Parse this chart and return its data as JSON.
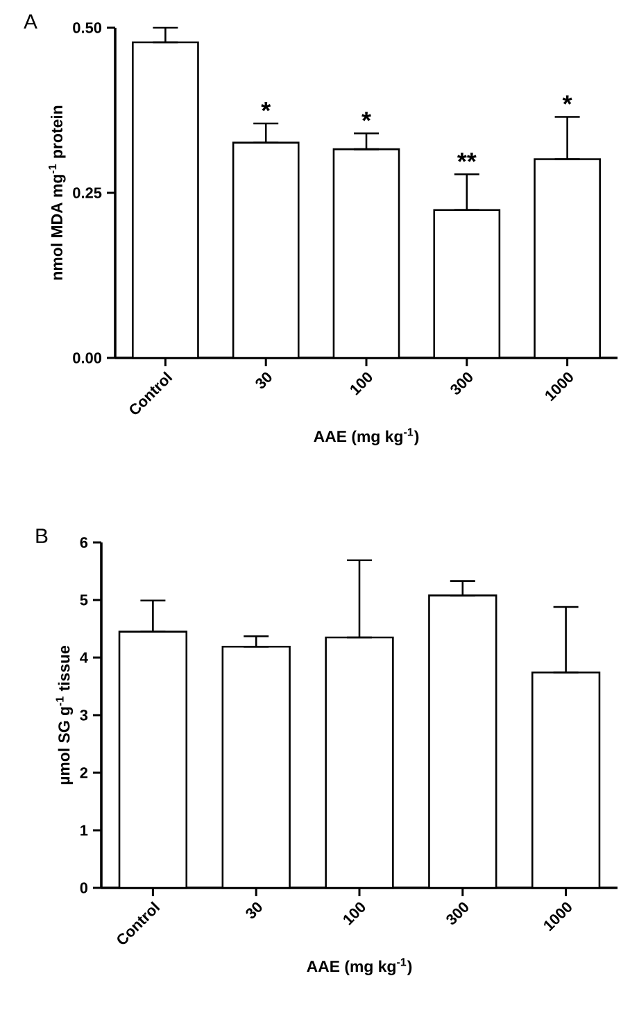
{
  "chart_data": [
    {
      "type": "bar",
      "title": "A",
      "xlabel": "AAE (mg kg$^{-1}$)",
      "ylabel": "nmol MDA  mg$^{-1}$ protein",
      "color": "#ffffff",
      "categories": [
        "Control",
        "30",
        "100",
        "300",
        "1000"
      ],
      "values": [
        0.478,
        0.326,
        0.316,
        0.224,
        0.301
      ],
      "errors": [
        [
          0.478,
          0.5
        ],
        [
          0.326,
          0.355
        ],
        [
          0.316,
          0.34
        ],
        [
          0.224,
          0.278
        ],
        [
          0.301,
          0.365
        ]
      ],
      "ylim": [
        0,
        0.5
      ],
      "yticks": [
        {
          "value": 0,
          "label": "0.00"
        },
        {
          "value": 0.25,
          "label": "0.25"
        },
        {
          "value": 0.5,
          "label": "0.50"
        }
      ],
      "annotations": [
        {
          "text": "*",
          "x": "30",
          "y": 0.355
        },
        {
          "text": "*",
          "x": "100",
          "y": 0.34
        },
        {
          "text": "**",
          "x": "300",
          "y": 0.278
        },
        {
          "text": "*",
          "x": "1000",
          "y": 0.365
        }
      ]
    },
    {
      "type": "bar",
      "title": "B",
      "xlabel": "AAE (mg kg$^{-1}$)",
      "ylabel": "µmol SG  g$^{-1}$ tissue",
      "color": "#ffffff",
      "categories": [
        "Control",
        "30",
        "100",
        "300",
        "1000"
      ],
      "values": [
        4.45,
        4.19,
        4.35,
        5.08,
        3.74
      ],
      "errors": [
        [
          4.45,
          4.99
        ],
        [
          4.19,
          4.37
        ],
        [
          4.35,
          5.69
        ],
        [
          5.08,
          5.33
        ],
        [
          3.74,
          4.88
        ]
      ],
      "ylim": [
        0,
        6
      ],
      "yticks": [
        0,
        1,
        2,
        3,
        4,
        5,
        6
      ]
    }
  ]
}
